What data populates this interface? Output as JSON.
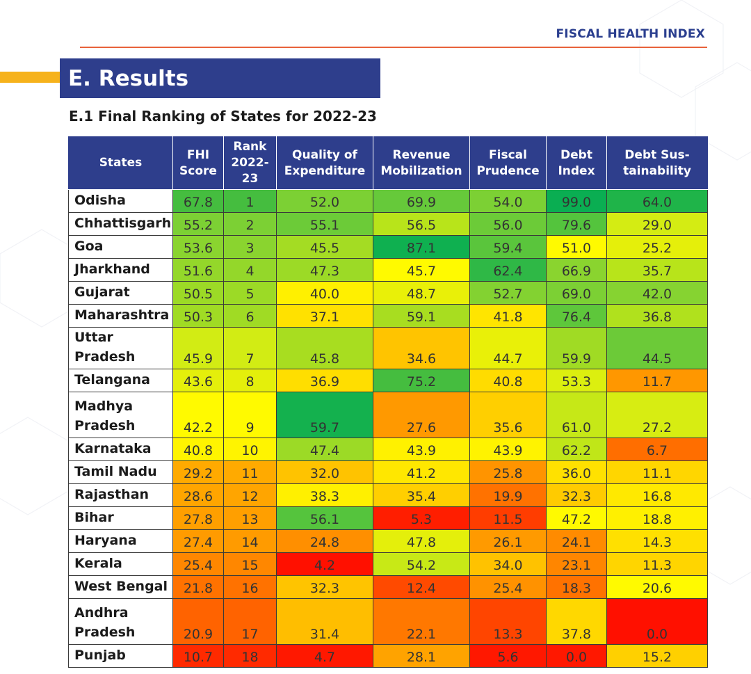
{
  "header": {
    "title": "FISCAL HEALTH INDEX"
  },
  "section": {
    "title": "E. Results"
  },
  "subtitle": "E.1 Final Ranking of States for 2022-23",
  "table": {
    "columns": [
      [
        "States"
      ],
      [
        "FHI",
        "Score"
      ],
      [
        "Rank",
        "2022-",
        "23"
      ],
      [
        "Quality of",
        "Expenditure"
      ],
      [
        "Revenue",
        "Mobilization"
      ],
      [
        "Fiscal",
        "Prudence"
      ],
      [
        "Debt",
        "Index"
      ],
      [
        "Debt Sus-",
        "tainability"
      ]
    ],
    "rows": [
      {
        "state": [
          "Odisha"
        ],
        "values": [
          "67.8",
          "1",
          "52.0",
          "69.9",
          "54.0",
          "99.0",
          "64.0"
        ],
        "colors": [
          "#45bd3f",
          "#45bd3f",
          "#7cd034",
          "#66c93a",
          "#7cd034",
          "#0aae52",
          "#1fb449"
        ]
      },
      {
        "state": [
          "Chhattisgarh"
        ],
        "values": [
          "55.2",
          "2",
          "55.1",
          "56.5",
          "56.0",
          "79.6",
          "29.0"
        ],
        "colors": [
          "#7cd034",
          "#7cd034",
          "#6ccb38",
          "#b8e41a",
          "#6ccb38",
          "#54c43d",
          "#d4ec13"
        ]
      },
      {
        "state": [
          "Goa"
        ],
        "values": [
          "53.6",
          "3",
          "45.5",
          "87.1",
          "59.4",
          "51.0",
          "25.2"
        ],
        "colors": [
          "#8ad42f",
          "#8ad42f",
          "#a4dc23",
          "#0fb050",
          "#5ac53c",
          "#fffa00",
          "#e5ef0a"
        ]
      },
      {
        "state": [
          "Jharkhand"
        ],
        "values": [
          "51.6",
          "4",
          "47.3",
          "45.7",
          "62.4",
          "66.9",
          "35.7"
        ],
        "colors": [
          "#94d72a",
          "#94d72a",
          "#9cda26",
          "#fffa00",
          "#2fb846",
          "#8ad42f",
          "#b8e41a"
        ]
      },
      {
        "state": [
          "Gujarat"
        ],
        "values": [
          "50.5",
          "5",
          "40.0",
          "48.7",
          "52.7",
          "69.0",
          "42.0"
        ],
        "colors": [
          "#9cda26",
          "#9cda26",
          "#fff000",
          "#e9f008",
          "#83d231",
          "#7cd034",
          "#86d331"
        ]
      },
      {
        "state": [
          "Maharashtra"
        ],
        "values": [
          "50.3",
          "6",
          "37.1",
          "59.1",
          "41.8",
          "76.4",
          "36.8"
        ],
        "colors": [
          "#a0db24",
          "#a0db24",
          "#ffe100",
          "#a8dd20",
          "#ffe500",
          "#5ec73b",
          "#b0e11d"
        ]
      },
      {
        "state": [
          "Uttar Pradesh"
        ],
        "values": [
          "45.9",
          "7",
          "45.8",
          "34.6",
          "44.7",
          "59.9",
          "44.5"
        ],
        "colors": [
          "#d2ec14",
          "#d2ec14",
          "#a8dd20",
          "#ffc400",
          "#e9f008",
          "#a0db24",
          "#6cca38"
        ]
      },
      {
        "state": [
          "Telangana"
        ],
        "values": [
          "43.6",
          "8",
          "36.9",
          "75.2",
          "40.8",
          "53.3",
          "11.7"
        ],
        "colors": [
          "#e4ef0b",
          "#e4ef0b",
          "#ffde00",
          "#45bd3f",
          "#ffdc00",
          "#dcef0f",
          "#ff9700"
        ]
      },
      {
        "state": [
          "Madhya",
          "Pradesh"
        ],
        "values": [
          "42.2",
          "9",
          "59.7",
          "27.6",
          "35.6",
          "61.0",
          "27.2"
        ],
        "colors": [
          "#fffa00",
          "#fffa00",
          "#14b14e",
          "#ff9900",
          "#ffcf00",
          "#c6e817",
          "#d7ed12"
        ]
      },
      {
        "state": [
          "Karnataka"
        ],
        "values": [
          "40.8",
          "10",
          "47.4",
          "43.9",
          "43.9",
          "62.2",
          "6.7"
        ],
        "colors": [
          "#fff400",
          "#fff400",
          "#9cda26",
          "#fff100",
          "#fff300",
          "#c0e618",
          "#ff6e00"
        ]
      },
      {
        "state": [
          "Tamil Nadu"
        ],
        "values": [
          "29.2",
          "11",
          "32.0",
          "41.2",
          "25.8",
          "36.0",
          "11.1"
        ],
        "colors": [
          "#ffaa00",
          "#ffaa00",
          "#ffc300",
          "#ffe700",
          "#ff9400",
          "#ffe100",
          "#ffd600"
        ]
      },
      {
        "state": [
          "Rajasthan"
        ],
        "values": [
          "28.6",
          "12",
          "38.3",
          "35.4",
          "19.9",
          "32.3",
          "16.8"
        ],
        "colors": [
          "#ffa500",
          "#ffa500",
          "#fff000",
          "#ffcf00",
          "#ff7200",
          "#ffcb00",
          "#ffe900"
        ]
      },
      {
        "state": [
          "Bihar"
        ],
        "values": [
          "27.8",
          "13",
          "56.1",
          "5.3",
          "11.5",
          "47.2",
          "18.8"
        ],
        "colors": [
          "#ff9f00",
          "#ff9f00",
          "#55c43d",
          "#ff1e00",
          "#ff3d00",
          "#fffa00",
          "#fff000"
        ]
      },
      {
        "state": [
          "Haryana"
        ],
        "values": [
          "27.4",
          "14",
          "24.8",
          "47.8",
          "26.1",
          "24.1",
          "14.3"
        ],
        "colors": [
          "#ff9b00",
          "#ff9b00",
          "#ff8f00",
          "#e4ef0b",
          "#ff9a00",
          "#ff8b00",
          "#ffe000"
        ]
      },
      {
        "state": [
          "Kerala"
        ],
        "values": [
          "25.4",
          "15",
          "4.2",
          "54.2",
          "34.0",
          "23.1",
          "11.3"
        ],
        "colors": [
          "#ff8700",
          "#ff8700",
          "#ff1000",
          "#c8e916",
          "#ffc200",
          "#ff8600",
          "#ffd500"
        ]
      },
      {
        "state": [
          "West Bengal"
        ],
        "values": [
          "21.8",
          "16",
          "32.3",
          "12.4",
          "25.4",
          "18.3",
          "20.6"
        ],
        "colors": [
          "#ff7200",
          "#ff7200",
          "#ffc400",
          "#ff4a00",
          "#ff9200",
          "#ff7200",
          "#fffa00"
        ]
      },
      {
        "state": [
          "Andhra",
          "Pradesh"
        ],
        "values": [
          "20.9",
          "17",
          "31.4",
          "22.1",
          "13.3",
          "37.8",
          "0.0"
        ],
        "colors": [
          "#ff6300",
          "#ff6300",
          "#ffbe00",
          "#ff7800",
          "#ff4500",
          "#ffd800",
          "#ff1000"
        ]
      },
      {
        "state": [
          "Punjab"
        ],
        "values": [
          "10.7",
          "18",
          "4.7",
          "28.1",
          "5.6",
          "0.0",
          "15.2"
        ],
        "colors": [
          "#ff2a00",
          "#ff2a00",
          "#ff1800",
          "#ffa300",
          "#ff1800",
          "#ff1800",
          "#ffd000"
        ]
      }
    ]
  }
}
